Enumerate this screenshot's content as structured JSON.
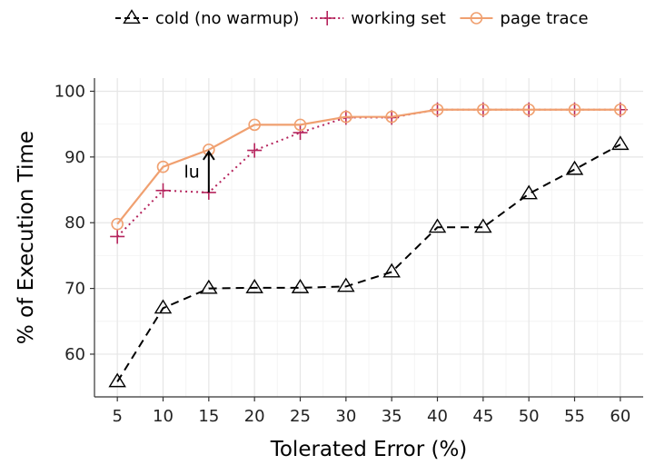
{
  "chart_data": {
    "type": "line",
    "title": "",
    "xlabel": "Tolerated Error (%)",
    "ylabel": "% of Execution Time",
    "x": [
      5,
      10,
      15,
      20,
      25,
      30,
      35,
      40,
      45,
      50,
      55,
      60
    ],
    "xlim": [
      2.5,
      62.5
    ],
    "ylim": [
      53.5,
      102
    ],
    "x_ticks": [
      5,
      10,
      15,
      20,
      25,
      30,
      35,
      40,
      45,
      50,
      55,
      60
    ],
    "y_ticks": [
      60,
      70,
      80,
      90,
      100
    ],
    "grid": true,
    "legend_position": "top",
    "series": [
      {
        "name": "cold (no warmup)",
        "color": "#000000",
        "line": "dashed",
        "marker": "triangle-open",
        "values": [
          55.8,
          67.0,
          70.0,
          70.1,
          70.1,
          70.3,
          72.5,
          79.3,
          79.3,
          84.4,
          88.1,
          91.9
        ]
      },
      {
        "name": "working set",
        "color": "#b5235c",
        "line": "dotted",
        "marker": "plus",
        "values": [
          77.9,
          84.9,
          84.6,
          91.0,
          93.7,
          96.0,
          96.0,
          97.2,
          97.2,
          97.2,
          97.2,
          97.2
        ]
      },
      {
        "name": "page trace",
        "color": "#f0a070",
        "line": "solid",
        "marker": "circle-open",
        "values": [
          79.8,
          88.5,
          91.1,
          94.9,
          94.9,
          96.1,
          96.1,
          97.2,
          97.2,
          97.2,
          97.2,
          97.2
        ]
      }
    ],
    "annotations": [
      {
        "text": "lu",
        "arrow_x": 15,
        "arrow_from_y": 84.6,
        "arrow_to_y": 91.1
      }
    ]
  }
}
